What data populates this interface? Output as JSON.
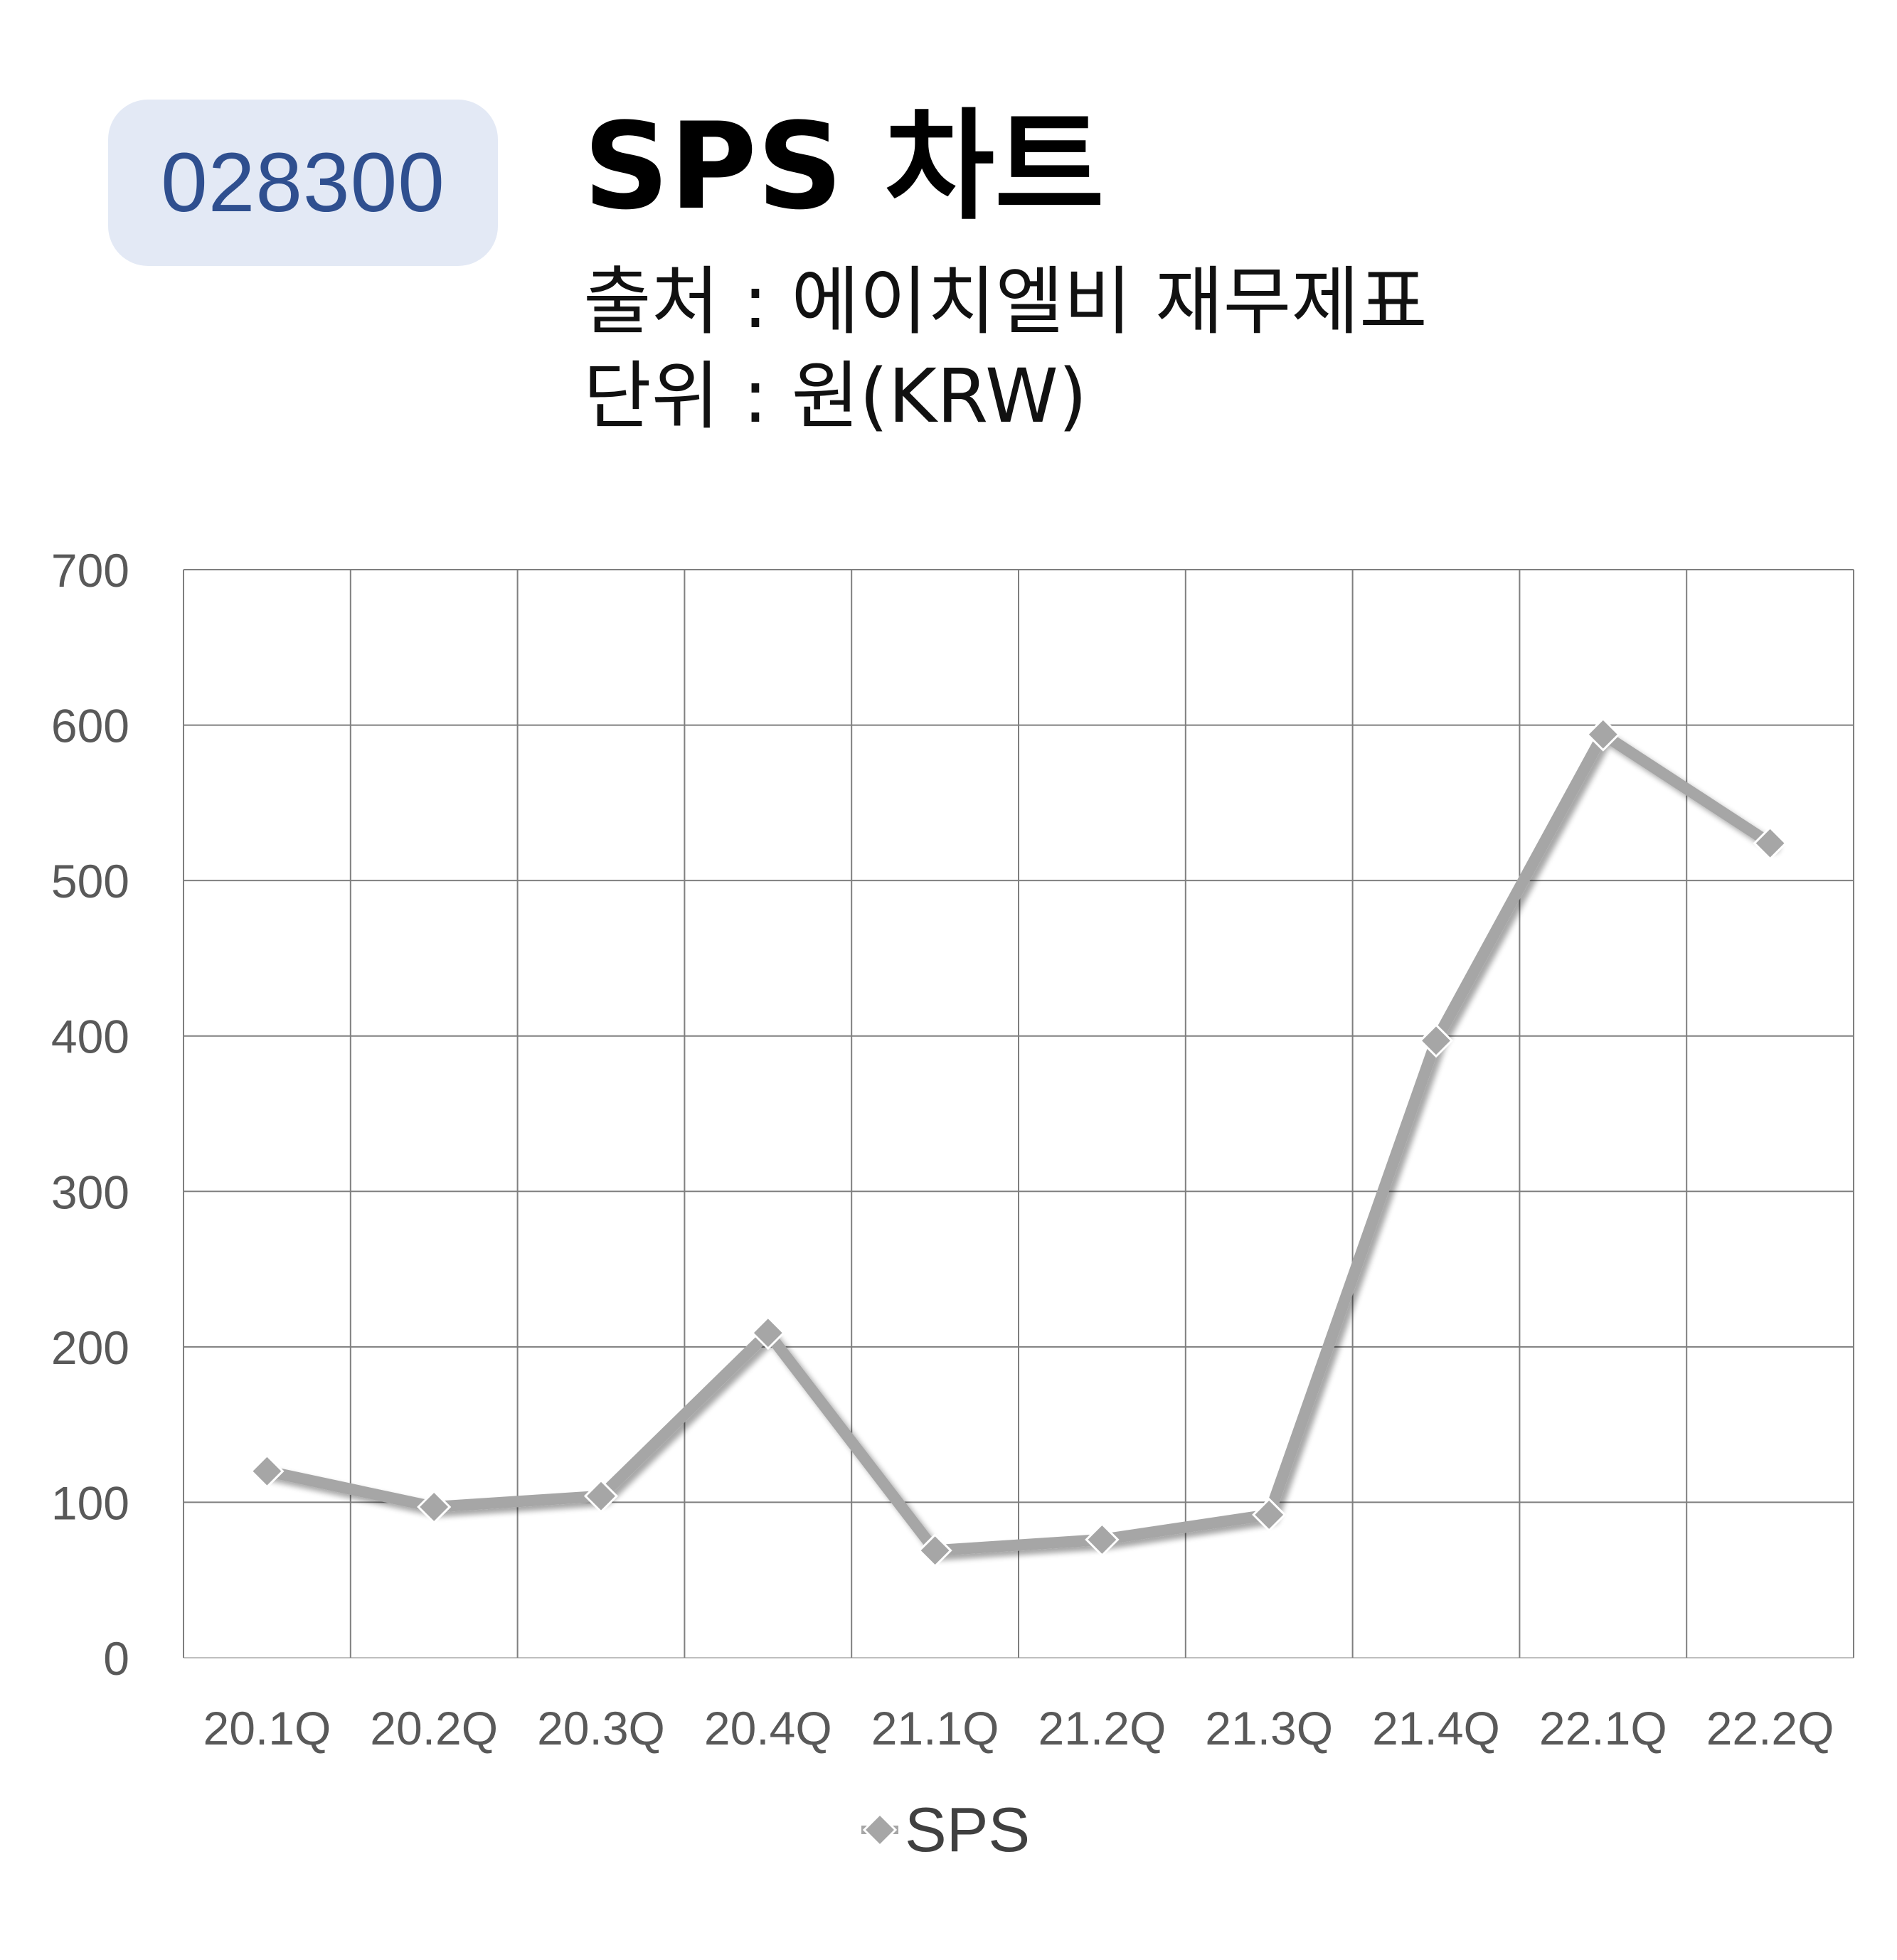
{
  "header": {
    "ticker": "028300",
    "title": "SPS 차트",
    "source": "출처 : 에이치엘비 재무제표",
    "unit": "단위 : 원(KRW)"
  },
  "chart_data": {
    "type": "line",
    "categories": [
      "20.1Q",
      "20.2Q",
      "20.3Q",
      "20.4Q",
      "21.1Q",
      "21.2Q",
      "21.3Q",
      "21.4Q",
      "22.1Q",
      "22.2Q"
    ],
    "series": [
      {
        "name": "SPS",
        "values": [
          120,
          97,
          104,
          209,
          69,
          76,
          92,
          397,
          594,
          524
        ],
        "color": "#a6a6a6",
        "marker": "diamond"
      }
    ],
    "ylim": [
      0,
      700
    ],
    "yticks": [
      0,
      100,
      200,
      300,
      400,
      500,
      600,
      700
    ],
    "grid": true,
    "legend": "bottom",
    "colors": {
      "grid": "#7f7f7f",
      "tick_label": "#595959",
      "line": "#a6a6a6"
    }
  }
}
